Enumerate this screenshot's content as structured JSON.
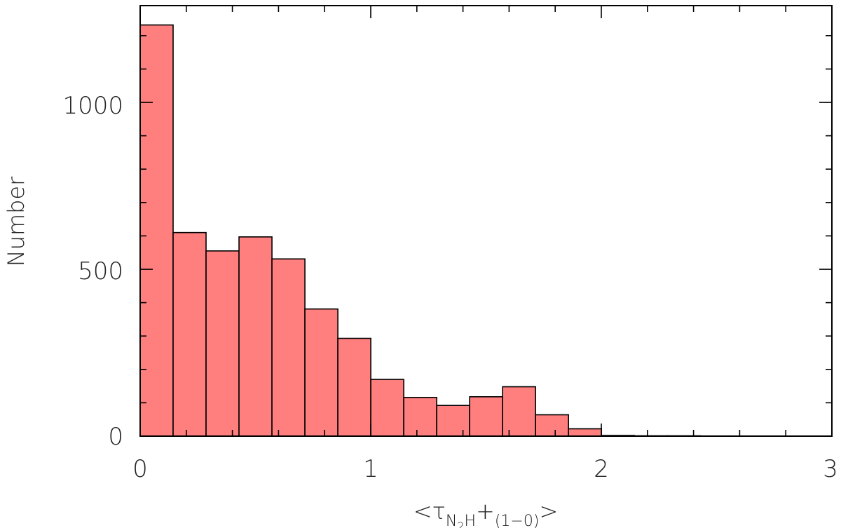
{
  "chart_data": {
    "type": "bar",
    "style": "histogram",
    "bar_color": "#ff7f7f",
    "edge_color": "#000000",
    "bin_width": 0.1429,
    "x_start": 0,
    "values": [
      1232,
      610,
      555,
      597,
      531,
      381,
      293,
      170,
      116,
      92,
      118,
      148,
      64,
      22,
      2,
      1,
      1,
      0.5,
      0,
      0,
      0
    ],
    "xlim": [
      0,
      3
    ],
    "ylim": [
      0,
      1290
    ],
    "x_ticks": [
      "0",
      "1",
      "2",
      "3"
    ],
    "y_ticks": [
      "0",
      "500",
      "1000"
    ],
    "ylabel": "Number",
    "xlabel": {
      "open": "<τ",
      "sub_n": "N",
      "sub_2": "2",
      "sub_h": "H",
      "plus": "+",
      "sub_transition": "(1−0)",
      "close": ">"
    },
    "grid": false,
    "legend": "none"
  }
}
